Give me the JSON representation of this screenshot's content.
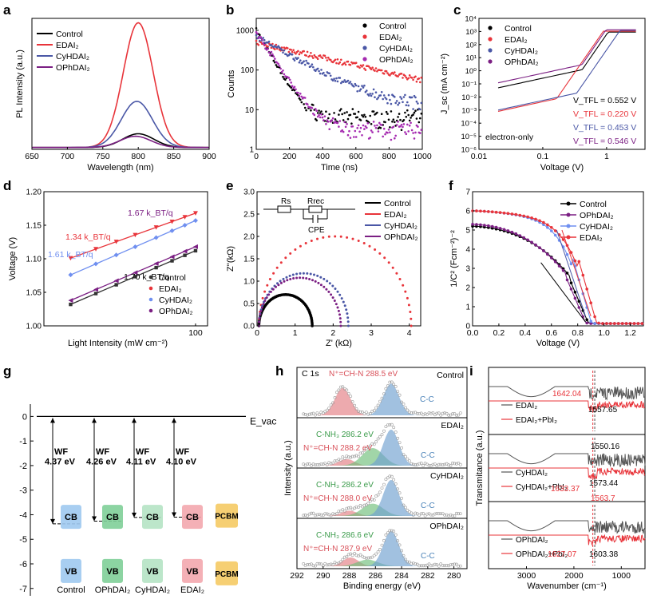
{
  "chart_data": [
    {
      "panel": "a",
      "type": "line",
      "xlabel": "Wavelength (nm)",
      "ylabel": "PL Intensity (a.u.)",
      "xlim": [
        650,
        900
      ],
      "ylim": [
        0,
        1.05
      ],
      "xticks": [
        "650",
        "700",
        "750",
        "800",
        "850",
        "900"
      ],
      "legend_position": "top-left",
      "series": [
        {
          "name": "Control",
          "color": "#000000",
          "peak_x": 800,
          "peak_y": 0.11,
          "sigma": 22
        },
        {
          "name": "EDAI₂",
          "color": "#e8343a",
          "peak_x": 800,
          "peak_y": 1.0,
          "sigma": 21
        },
        {
          "name": "CyHDAI₂",
          "color": "#4a57a6",
          "peak_x": 798,
          "peak_y": 0.37,
          "sigma": 22
        },
        {
          "name": "OPhDAI₂",
          "color": "#7b1f83",
          "peak_x": 796,
          "peak_y": 0.09,
          "sigma": 22
        }
      ]
    },
    {
      "panel": "b",
      "type": "scatter",
      "xlabel": "Time (ns)",
      "ylabel": "Counts",
      "xlim": [
        0,
        1000
      ],
      "ylim": [
        1,
        2000
      ],
      "yscale": "log",
      "xticks": [
        "0",
        "200",
        "400",
        "600",
        "800",
        "1000"
      ],
      "yticks": [
        "1",
        "10",
        "100",
        "1000"
      ],
      "legend_position": "top-right",
      "series": [
        {
          "name": "Control",
          "color": "#000000",
          "y0": 1000,
          "tau": 60,
          "floor": 6
        },
        {
          "name": "EDAI₂",
          "color": "#e8343a",
          "y0": 500,
          "tau": 450,
          "floor": 1
        },
        {
          "name": "CyHDAI₂",
          "color": "#4a57a6",
          "y0": 700,
          "tau": 180,
          "floor": 12
        },
        {
          "name": "OPhDAI₂",
          "color": "#a52ab0",
          "y0": 900,
          "tau": 70,
          "floor": 3
        }
      ]
    },
    {
      "panel": "c",
      "type": "line",
      "xlabel": "Voltage (V)",
      "ylabel": "J_sc (mA cm⁻²)",
      "xscale": "log",
      "yscale": "log",
      "xlim": [
        0.01,
        4
      ],
      "ylim": [
        1e-06,
        10000.0
      ],
      "xticks": [
        "0.01",
        "0.1",
        "1"
      ],
      "yticks": [
        "10⁻⁶",
        "10⁻⁵",
        "10⁻⁴",
        "10⁻³",
        "10⁻²",
        "10⁻¹",
        "10⁰",
        "10¹",
        "10²",
        "10³",
        "10⁴"
      ],
      "annotation": "electron-only",
      "series": [
        {
          "name": "Control",
          "color": "#000000",
          "vtfl_label": "V_TFL = 0.552 V",
          "low_j": 0.05,
          "vtfl": 0.552
        },
        {
          "name": "EDAI₂",
          "color": "#e8343a",
          "vtfl_label": "V_TFL = 0.220 V",
          "low_j": 0.0008,
          "vtfl": 0.22
        },
        {
          "name": "CyHDAI₂",
          "color": "#4a57a6",
          "vtfl_label": "V_TFL = 0.453 V",
          "low_j": 0.001,
          "vtfl": 0.453
        },
        {
          "name": "OPhDAI₂",
          "color": "#7b1f83",
          "vtfl_label": "V_TFL = 0.546 V",
          "low_j": 0.12,
          "vtfl": 0.546
        }
      ]
    },
    {
      "panel": "d",
      "type": "scatter",
      "xlabel": "Light Intensity (mW cm⁻²)",
      "ylabel": "Voltage (V)",
      "xscale": "log",
      "xlim": [
        10,
        120
      ],
      "ylim": [
        1.0,
        1.2
      ],
      "xticks": [
        "100"
      ],
      "yticks": [
        "1.00",
        "1.05",
        "1.10",
        "1.15",
        "1.20"
      ],
      "legend_position": "bottom-right",
      "series": [
        {
          "name": "Control",
          "color": "#333333",
          "marker": "square",
          "slope_label": "1.70 k_BT/q",
          "v_start": 1.032,
          "v_end": 1.112
        },
        {
          "name": "EDAI₂",
          "color": "#e8343a",
          "marker": "triangle-down",
          "slope_label": "1.34 k_BT/q",
          "v_start": 1.101,
          "v_end": 1.168
        },
        {
          "name": "CyHDAI₂",
          "color": "#6f8ff0",
          "marker": "diamond",
          "slope_label": "1.61 k_BT/q",
          "v_start": 1.076,
          "v_end": 1.157
        },
        {
          "name": "OPhDAI₂",
          "color": "#7b1f83",
          "marker": "triangle-left",
          "slope_label": "1.67 k_BT/q",
          "v_start": 1.038,
          "v_end": 1.118
        }
      ]
    },
    {
      "panel": "e",
      "type": "scatter",
      "xlabel": "Z' (kΩ)",
      "ylabel": "Z''(kΩ)",
      "xlim": [
        0,
        4.3
      ],
      "ylim": [
        0,
        3.0
      ],
      "xticks": [
        "0",
        "1",
        "2",
        "3",
        "4"
      ],
      "yticks": [
        "0.0",
        "0.5",
        "1.0",
        "1.5",
        "2.0",
        "2.5",
        "3.0"
      ],
      "circuit_labels": [
        "Rs",
        "Rrec",
        "CPE"
      ],
      "legend_position": "top-right",
      "series": [
        {
          "name": "Control",
          "color": "#000000",
          "r_start": 0.05,
          "r_end": 1.45
        },
        {
          "name": "EDAI₂",
          "color": "#e8343a",
          "r_start": 0.05,
          "r_end": 4.05
        },
        {
          "name": "CyHDAI₂",
          "color": "#4a57a6",
          "r_start": 0.05,
          "r_end": 2.4
        },
        {
          "name": "OPhDAI₂",
          "color": "#7b1f83",
          "r_start": 0.05,
          "r_end": 2.2
        }
      ]
    },
    {
      "panel": "f",
      "type": "line",
      "xlabel": "Voltage (V)",
      "ylabel": "1/C² (Fcm⁻²)⁻²",
      "xlim": [
        0.0,
        1.3
      ],
      "ylim": [
        0,
        7
      ],
      "xticks": [
        "0.0",
        "0.2",
        "0.4",
        "0.6",
        "0.8",
        "1.0",
        "1.2"
      ],
      "yticks": [
        "0",
        "1",
        "2",
        "3",
        "4",
        "5",
        "6",
        "7"
      ],
      "legend_position": "top-right",
      "series": [
        {
          "name": "Control",
          "color": "#000000",
          "y0": 5.2,
          "vbi": 0.86
        },
        {
          "name": "OPhDAI₂",
          "color": "#7b1f83",
          "y0": 5.3,
          "vbi": 0.84
        },
        {
          "name": "CyHDAI₂",
          "color": "#6f8ff0",
          "y0": 6.0,
          "vbi": 0.88
        },
        {
          "name": "EDAI₂",
          "color": "#e8343a",
          "y0": 6.0,
          "vbi": 0.92
        }
      ]
    },
    {
      "panel": "g",
      "type": "diagram",
      "evac_label": "E_vac",
      "zero_label": "0",
      "yticks": [
        "0",
        "-1",
        "-2",
        "-3",
        "-4",
        "-5",
        "-6",
        "-7"
      ],
      "ylim": [
        -7.3,
        0.5
      ],
      "columns": [
        {
          "name": "Control",
          "wf": "4.37 eV",
          "wf_value": 4.37,
          "cb": "CB",
          "vb": "VB",
          "color": "#9ec9ef"
        },
        {
          "name": "OPhDAI₂",
          "wf": "4.26 eV",
          "wf_value": 4.26,
          "cb": "CB",
          "vb": "VB",
          "color": "#7fcf98"
        },
        {
          "name": "CyHDAI₂",
          "wf": "4.11 eV",
          "wf_value": 4.11,
          "cb": "CB",
          "vb": "VB",
          "color": "#b5e3c4"
        },
        {
          "name": "EDAI₂",
          "wf": "4.10 eV",
          "wf_value": 4.1,
          "cb": "CB",
          "vb": "VB",
          "color": "#f3a7ae"
        }
      ],
      "pcbm_label": "PCBM",
      "pcbm_color": "#f6cf73",
      "wf_label": "WF"
    },
    {
      "panel": "h",
      "type": "line",
      "title": "C 1s",
      "xlabel": "Binding energy (eV)",
      "ylabel": "Intensity (a.u.)",
      "xlim": [
        292,
        279
      ],
      "xreverse": true,
      "xticks": [
        "292",
        "290",
        "288",
        "286",
        "284",
        "282",
        "280"
      ],
      "subpanels": [
        {
          "name": "Control",
          "labels": [
            "N⁺=CH-N 288.5 eV",
            "C-C"
          ],
          "peaks": [
            {
              "x": 288.5,
              "h": 0.62,
              "w": 0.6,
              "fill": "#e47d83"
            },
            {
              "x": 284.8,
              "h": 0.72,
              "w": 0.6,
              "fill": "#6fa0cf"
            }
          ]
        },
        {
          "name": "EDAI₂",
          "labels": [
            "C-NH₃ 286.2 eV",
            "N⁺=CH-N 288.2 eV",
            "C-C"
          ],
          "peaks": [
            {
              "x": 288.2,
              "h": 0.15,
              "w": 0.6,
              "fill": "#e47d83"
            },
            {
              "x": 286.2,
              "h": 0.4,
              "w": 0.8,
              "fill": "#6fbf7a"
            },
            {
              "x": 284.8,
              "h": 0.82,
              "w": 0.6,
              "fill": "#6fa0cf"
            }
          ]
        },
        {
          "name": "CyHDAI₂",
          "labels": [
            "C-NH₃ 286.2 eV",
            "N⁺=CH-N 288.0 eV",
            "C-C"
          ],
          "peaks": [
            {
              "x": 288.0,
              "h": 0.12,
              "w": 0.6,
              "fill": "#e47d83"
            },
            {
              "x": 286.2,
              "h": 0.28,
              "w": 0.8,
              "fill": "#6fbf7a"
            },
            {
              "x": 284.8,
              "h": 0.82,
              "w": 0.6,
              "fill": "#6fa0cf"
            }
          ]
        },
        {
          "name": "OPhDAI₂",
          "labels": [
            "C-NH₃ 286.6 eV",
            "N⁺=CH-N 287.9 eV",
            "C-C"
          ],
          "peaks": [
            {
              "x": 287.9,
              "h": 0.2,
              "w": 0.6,
              "fill": "#e47d83"
            },
            {
              "x": 286.6,
              "h": 0.15,
              "w": 0.8,
              "fill": "#6fbf7a"
            },
            {
              "x": 284.8,
              "h": 0.8,
              "w": 0.6,
              "fill": "#6fa0cf"
            }
          ]
        }
      ]
    },
    {
      "panel": "i",
      "type": "line",
      "xlabel": "Wavenumber (cm⁻¹)",
      "ylabel": "Transmitance (a.u.)",
      "xlim": [
        3800,
        500
      ],
      "xreverse": true,
      "xticks": [
        "3000",
        "2000",
        "1000"
      ],
      "subpanels": [
        {
          "pair": [
            "EDAI₂",
            "EDAI₂+PbI₂"
          ],
          "annotations": [
            "1642.04",
            "1557.65"
          ]
        },
        {
          "pair": [
            "CyHDAI₂",
            "CyHDAI₂+PbI₂"
          ],
          "annotations": [
            "1550.16",
            "1633.37",
            "1573.44",
            "1563.7"
          ]
        },
        {
          "pair": [
            "OPhDAI₂",
            "OPhDAI₂+PbI₂"
          ],
          "annotations": [
            "1627.07",
            "1603.38"
          ]
        }
      ]
    }
  ],
  "panel_labels": [
    "a",
    "b",
    "c",
    "d",
    "e",
    "f",
    "g",
    "h",
    "i"
  ]
}
